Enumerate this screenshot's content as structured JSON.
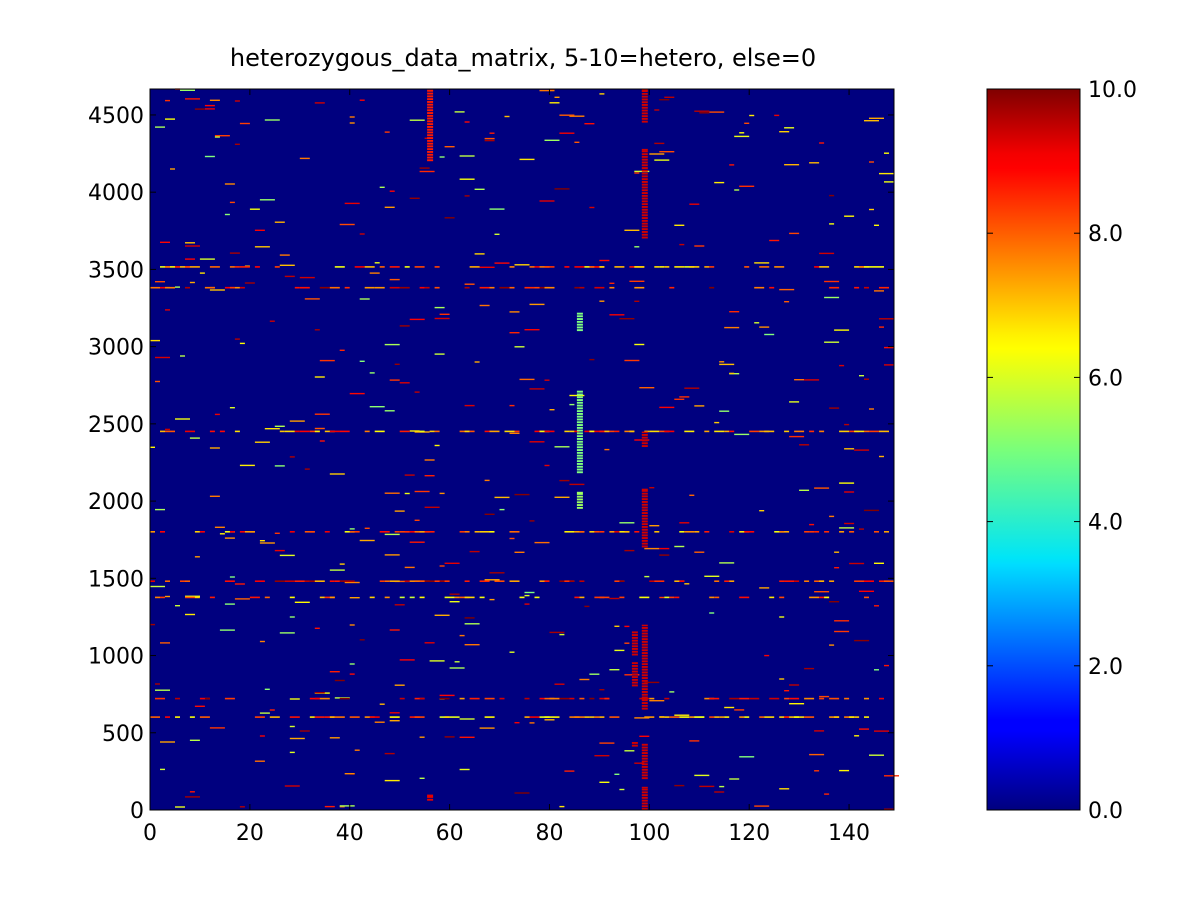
{
  "chart_data": {
    "type": "heatmap",
    "title": "heterozygous_data_matrix, 5-10=hetero, else=0",
    "xlabel": "",
    "ylabel": "",
    "xlim": [
      0,
      149
    ],
    "ylim": [
      0,
      4668
    ],
    "x_ticks": [
      0,
      20,
      40,
      60,
      80,
      100,
      120,
      140
    ],
    "x_tick_labels": [
      "0",
      "20",
      "40",
      "60",
      "80",
      "100",
      "120",
      "140"
    ],
    "y_ticks": [
      0,
      500,
      1000,
      1500,
      2000,
      2500,
      3000,
      3500,
      4000,
      4500
    ],
    "y_tick_labels": [
      "0",
      "500",
      "1000",
      "1500",
      "2000",
      "2500",
      "3000",
      "3500",
      "4000",
      "4500"
    ],
    "colorbar": {
      "colormap": "jet",
      "vmin": 0,
      "vmax": 10,
      "ticks": [
        0,
        2,
        4,
        6,
        8,
        10
      ],
      "tick_labels": [
        "0.0",
        "2.0",
        "4.0",
        "6.0",
        "8.0",
        "10.0"
      ]
    },
    "background_value": 0,
    "vertical_segments": [
      {
        "col": 56,
        "y0": 60,
        "y1": 100,
        "value": 9.0
      },
      {
        "col": 99,
        "y0": 0,
        "y1": 150,
        "value": 9.2
      },
      {
        "col": 99,
        "y0": 200,
        "y1": 430,
        "value": 9.2
      },
      {
        "col": 99,
        "y0": 650,
        "y1": 1200,
        "value": 9.2
      },
      {
        "col": 97,
        "y0": 800,
        "y1": 960,
        "value": 9.2
      },
      {
        "col": 97,
        "y0": 1000,
        "y1": 1160,
        "value": 9.2
      },
      {
        "col": 97,
        "y0": 410,
        "y1": 440,
        "value": 9.2
      },
      {
        "col": 99,
        "y0": 1700,
        "y1": 2080,
        "value": 9.2
      },
      {
        "col": 99,
        "y0": 2350,
        "y1": 2450,
        "value": 9.2
      },
      {
        "col": 86,
        "y0": 1950,
        "y1": 2060,
        "value": 5.3
      },
      {
        "col": 86,
        "y0": 2180,
        "y1": 2720,
        "value": 5.0
      },
      {
        "col": 86,
        "y0": 3100,
        "y1": 3220,
        "value": 5.0
      },
      {
        "col": 99,
        "y0": 3700,
        "y1": 4280,
        "value": 9.2
      },
      {
        "col": 99,
        "y0": 4450,
        "y1": 4668,
        "value": 9.2
      },
      {
        "col": 56,
        "y0": 4200,
        "y1": 4668,
        "value": 8.5
      }
    ],
    "horizontal_bands": [
      {
        "y": 1375,
        "value": 7.2
      },
      {
        "y": 2450,
        "value": 7.5
      },
      {
        "y": 3515,
        "value": 7.5
      },
      {
        "y": 600,
        "value": 7.4
      },
      {
        "y": 1800,
        "value": 7.6
      },
      {
        "y": 1480,
        "value": 8.4
      },
      {
        "y": 3380,
        "value": 8.6
      },
      {
        "y": 720,
        "value": 8.6
      }
    ]
  }
}
